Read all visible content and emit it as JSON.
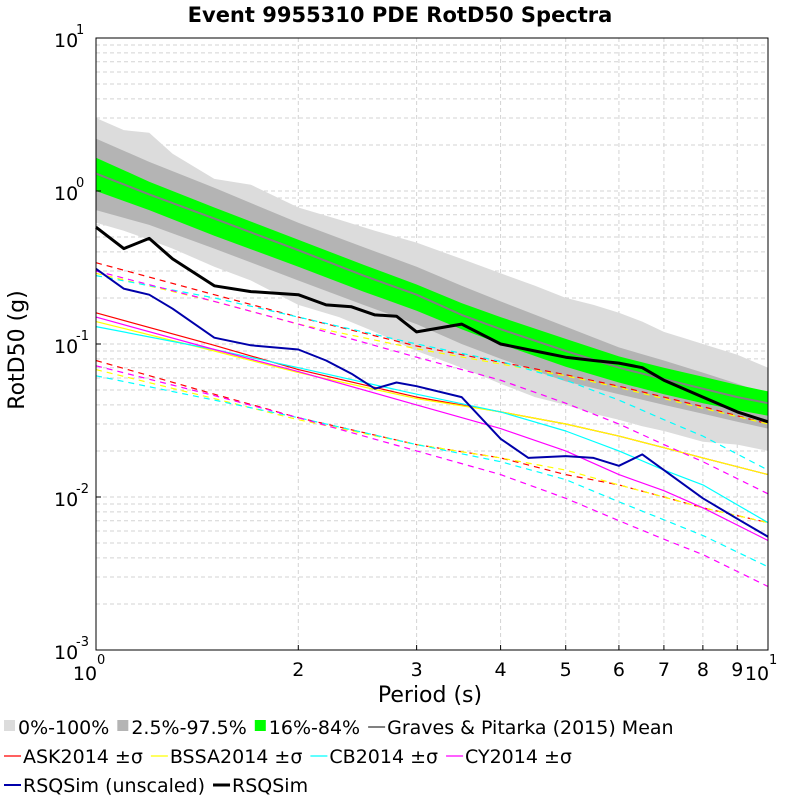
{
  "chart_data": {
    "type": "line",
    "title": "Event 9955310 PDE RotD50 Spectra",
    "xlabel": "Period (s)",
    "ylabel": "RotD50 (g)",
    "xscale": "log",
    "yscale": "log",
    "xlim": [
      1,
      10
    ],
    "ylim": [
      0.001,
      10
    ],
    "grid": true,
    "x_ticks": [
      {
        "value": 1,
        "base": "10",
        "exp": "0"
      },
      {
        "value": 2,
        "label": "2"
      },
      {
        "value": 3,
        "label": "3"
      },
      {
        "value": 4,
        "label": "4"
      },
      {
        "value": 5,
        "label": "5"
      },
      {
        "value": 6,
        "label": "6"
      },
      {
        "value": 7,
        "label": "7"
      },
      {
        "value": 8,
        "label": "8"
      },
      {
        "value": 9,
        "label": "9"
      },
      {
        "value": 10,
        "base": "10",
        "exp": "1"
      }
    ],
    "y_ticks": [
      {
        "value": 0.001,
        "base": "10",
        "exp": "-3"
      },
      {
        "value": 0.01,
        "base": "10",
        "exp": "-2"
      },
      {
        "value": 0.1,
        "base": "10",
        "exp": "-1"
      },
      {
        "value": 1,
        "base": "10",
        "exp": "0"
      },
      {
        "value": 10,
        "base": "10",
        "exp": "1"
      }
    ],
    "legend_position": "bottom",
    "bands": [
      {
        "name": "0%-100%",
        "color": "#dcdcdc",
        "x": [
          1,
          1.1,
          1.2,
          1.3,
          1.5,
          1.7,
          2,
          2.3,
          2.6,
          3,
          3.5,
          4,
          4.5,
          5,
          5.5,
          6,
          6.5,
          7,
          8,
          9,
          10
        ],
        "upper": [
          3.0,
          2.5,
          2.4,
          1.75,
          1.2,
          1.1,
          0.78,
          0.65,
          0.55,
          0.46,
          0.36,
          0.29,
          0.24,
          0.2,
          0.18,
          0.16,
          0.14,
          0.12,
          0.1,
          0.085,
          0.07
        ],
        "lower": [
          0.62,
          0.55,
          0.48,
          0.42,
          0.32,
          0.26,
          0.18,
          0.15,
          0.12,
          0.09,
          0.07,
          0.055,
          0.045,
          0.04,
          0.035,
          0.032,
          0.029,
          0.027,
          0.023,
          0.022,
          0.02
        ]
      },
      {
        "name": "2.5%-97.5%",
        "color": "#b4b4b4",
        "x": [
          1,
          1.2,
          1.5,
          2,
          2.5,
          3,
          3.5,
          4,
          5,
          6,
          7,
          8,
          9,
          10
        ],
        "upper": [
          2.2,
          1.55,
          1.05,
          0.62,
          0.43,
          0.32,
          0.24,
          0.19,
          0.13,
          0.095,
          0.078,
          0.065,
          0.055,
          0.047
        ],
        "lower": [
          0.75,
          0.6,
          0.42,
          0.26,
          0.18,
          0.135,
          0.1,
          0.08,
          0.057,
          0.047,
          0.04,
          0.035,
          0.031,
          0.028
        ]
      },
      {
        "name": "16%-84%",
        "color": "#00ff00",
        "x": [
          1,
          1.2,
          1.5,
          2,
          2.5,
          3,
          3.5,
          4,
          5,
          6,
          7,
          8,
          9,
          10
        ],
        "upper": [
          1.65,
          1.15,
          0.78,
          0.48,
          0.33,
          0.245,
          0.185,
          0.15,
          0.108,
          0.083,
          0.07,
          0.061,
          0.054,
          0.049
        ],
        "lower": [
          1.0,
          0.75,
          0.51,
          0.32,
          0.22,
          0.165,
          0.125,
          0.1,
          0.071,
          0.056,
          0.047,
          0.041,
          0.037,
          0.034
        ]
      }
    ],
    "series": [
      {
        "name": "Graves & Pitarka (2015) Mean",
        "color": "#808080",
        "width": 2,
        "dash": "",
        "x": [
          1,
          1.2,
          1.5,
          2,
          2.5,
          3,
          3.5,
          4,
          5,
          6,
          7,
          8,
          9,
          10
        ],
        "y": [
          1.3,
          0.95,
          0.66,
          0.41,
          0.28,
          0.21,
          0.155,
          0.125,
          0.09,
          0.07,
          0.059,
          0.051,
          0.045,
          0.041
        ]
      },
      {
        "name": "ASK2014 ±σ",
        "color": "#ff0000",
        "width": 1.2,
        "dash": "",
        "x": [
          1,
          1.5,
          2,
          3,
          4,
          5,
          6,
          7,
          8,
          10
        ],
        "y": [
          0.16,
          0.098,
          0.068,
          0.045,
          0.036,
          0.03,
          0.025,
          0.021,
          0.018,
          0.014
        ]
      },
      {
        "name": "ASK2014 ±σ",
        "color": "#ff0000",
        "width": 1.2,
        "dash": "6,5",
        "legend": false,
        "x": [
          1,
          1.5,
          2,
          3,
          4,
          5,
          6,
          7,
          8,
          10
        ],
        "y": [
          0.34,
          0.21,
          0.15,
          0.097,
          0.076,
          0.063,
          0.053,
          0.045,
          0.039,
          0.03
        ]
      },
      {
        "name": "ASK2014 ±σ",
        "color": "#ff0000",
        "width": 1.2,
        "dash": "6,5",
        "legend": false,
        "x": [
          1,
          1.5,
          2,
          3,
          4,
          5,
          6,
          7,
          8,
          10
        ],
        "y": [
          0.078,
          0.047,
          0.033,
          0.022,
          0.018,
          0.014,
          0.012,
          0.01,
          0.0085,
          0.0068
        ]
      },
      {
        "name": "BSSA2014 ±σ",
        "color": "#ffff00",
        "width": 1.2,
        "dash": "",
        "x": [
          1,
          1.5,
          2,
          3,
          4,
          5,
          6,
          7,
          8,
          10
        ],
        "y": [
          0.14,
          0.09,
          0.065,
          0.044,
          0.036,
          0.03,
          0.025,
          0.021,
          0.018,
          0.014
        ]
      },
      {
        "name": "BSSA2014 ±σ",
        "color": "#ffff00",
        "width": 1.2,
        "dash": "6,5",
        "legend": false,
        "x": [
          1,
          1.5,
          2,
          3,
          4,
          5,
          6,
          7,
          8,
          10
        ],
        "y": [
          0.29,
          0.19,
          0.135,
          0.093,
          0.074,
          0.062,
          0.052,
          0.044,
          0.038,
          0.03
        ]
      },
      {
        "name": "BSSA2014 ±σ",
        "color": "#ffff00",
        "width": 1.2,
        "dash": "6,5",
        "legend": false,
        "x": [
          1,
          1.5,
          2,
          3,
          4,
          5,
          6,
          7,
          8,
          10
        ],
        "y": [
          0.068,
          0.044,
          0.032,
          0.022,
          0.018,
          0.015,
          0.012,
          0.01,
          0.0085,
          0.0068
        ]
      },
      {
        "name": "CB2014 ±σ",
        "color": "#00ffff",
        "width": 1.2,
        "dash": "",
        "x": [
          1,
          1.5,
          2,
          3,
          4,
          5,
          6,
          7,
          8,
          10
        ],
        "y": [
          0.13,
          0.092,
          0.07,
          0.047,
          0.036,
          0.027,
          0.02,
          0.015,
          0.012,
          0.0068
        ]
      },
      {
        "name": "CB2014 ±σ",
        "color": "#00ffff",
        "width": 1.2,
        "dash": "6,5",
        "legend": false,
        "x": [
          1,
          1.5,
          2,
          3,
          4,
          5,
          6,
          7,
          8,
          10
        ],
        "y": [
          0.28,
          0.2,
          0.15,
          0.1,
          0.077,
          0.058,
          0.043,
          0.032,
          0.025,
          0.015
        ]
      },
      {
        "name": "CB2014 ±σ",
        "color": "#00ffff",
        "width": 1.2,
        "dash": "6,5",
        "legend": false,
        "x": [
          1,
          1.5,
          2,
          3,
          4,
          5,
          6,
          7,
          8,
          10
        ],
        "y": [
          0.062,
          0.043,
          0.033,
          0.022,
          0.017,
          0.013,
          0.0093,
          0.0071,
          0.0056,
          0.0035
        ]
      },
      {
        "name": "CY2014 ±σ",
        "color": "#ff00ff",
        "width": 1.2,
        "dash": "",
        "x": [
          1,
          1.5,
          2,
          3,
          4,
          5,
          6,
          7,
          8,
          10
        ],
        "y": [
          0.15,
          0.092,
          0.066,
          0.04,
          0.028,
          0.02,
          0.014,
          0.011,
          0.0085,
          0.0052
        ]
      },
      {
        "name": "CY2014 ±σ",
        "color": "#ff00ff",
        "width": 1.2,
        "dash": "6,5",
        "legend": false,
        "x": [
          1,
          1.5,
          2,
          3,
          4,
          5,
          6,
          7,
          8,
          10
        ],
        "y": [
          0.3,
          0.19,
          0.135,
          0.082,
          0.058,
          0.041,
          0.03,
          0.022,
          0.017,
          0.0105
        ]
      },
      {
        "name": "CY2014 ±σ",
        "color": "#ff00ff",
        "width": 1.2,
        "dash": "6,5",
        "legend": false,
        "x": [
          1,
          1.5,
          2,
          3,
          4,
          5,
          6,
          7,
          8,
          10
        ],
        "y": [
          0.072,
          0.046,
          0.033,
          0.02,
          0.014,
          0.0098,
          0.007,
          0.0053,
          0.0042,
          0.0026
        ]
      },
      {
        "name": "RSQSim (unscaled)",
        "color": "#0000aa",
        "width": 2,
        "dash": "",
        "x": [
          1,
          1.1,
          1.2,
          1.3,
          1.5,
          1.7,
          2,
          2.2,
          2.4,
          2.6,
          2.8,
          3,
          3.5,
          4,
          4.4,
          5,
          5.5,
          6,
          6.5,
          7,
          8,
          9,
          10
        ],
        "y": [
          0.31,
          0.23,
          0.21,
          0.17,
          0.11,
          0.098,
          0.092,
          0.078,
          0.064,
          0.051,
          0.056,
          0.053,
          0.045,
          0.024,
          0.018,
          0.0185,
          0.018,
          0.016,
          0.019,
          0.015,
          0.0098,
          0.0072,
          0.0055
        ]
      },
      {
        "name": "RSQSim",
        "color": "#000000",
        "width": 3,
        "dash": "",
        "x": [
          1,
          1.1,
          1.2,
          1.3,
          1.5,
          1.7,
          2,
          2.2,
          2.4,
          2.6,
          2.8,
          3,
          3.5,
          4,
          4.5,
          5,
          5.5,
          6,
          6.5,
          7,
          8,
          9,
          10
        ],
        "y": [
          0.58,
          0.42,
          0.49,
          0.36,
          0.24,
          0.22,
          0.21,
          0.18,
          0.175,
          0.155,
          0.152,
          0.12,
          0.135,
          0.1,
          0.09,
          0.082,
          0.078,
          0.075,
          0.07,
          0.058,
          0.045,
          0.036,
          0.031
        ]
      }
    ],
    "legend": [
      {
        "label": "0%-100%",
        "kind": "box",
        "color": "#dcdcdc"
      },
      {
        "label": "2.5%-97.5%",
        "kind": "box",
        "color": "#b4b4b4"
      },
      {
        "label": "16%-84%",
        "kind": "box",
        "color": "#00ff00"
      },
      {
        "label": "Graves & Pitarka (2015) Mean",
        "kind": "line",
        "color": "#808080",
        "width": 2
      },
      {
        "label": "ASK2014 ±σ",
        "kind": "line",
        "color": "#ff0000",
        "width": 1.2
      },
      {
        "label": "BSSA2014 ±σ",
        "kind": "line",
        "color": "#ffff00",
        "width": 1.2
      },
      {
        "label": "CB2014 ±σ",
        "kind": "line",
        "color": "#00ffff",
        "width": 1.2
      },
      {
        "label": "CY2014 ±σ",
        "kind": "line",
        "color": "#ff00ff",
        "width": 1.2
      },
      {
        "label": "RSQSim (unscaled)",
        "kind": "line",
        "color": "#0000aa",
        "width": 2
      },
      {
        "label": "RSQSim",
        "kind": "line",
        "color": "#000000",
        "width": 3
      }
    ]
  }
}
